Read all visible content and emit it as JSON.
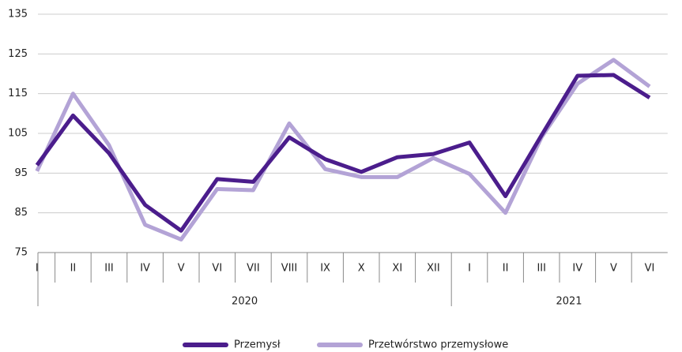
{
  "chart_data": {
    "type": "line",
    "groups": [
      {
        "name": "2020",
        "categories": [
          "I",
          "II",
          "III",
          "IV",
          "V",
          "VI",
          "VII",
          "VIII",
          "IX",
          "X",
          "XI",
          "XII"
        ]
      },
      {
        "name": "2021",
        "categories": [
          "I",
          "II",
          "III",
          "IV",
          "V",
          "VI"
        ]
      }
    ],
    "series": [
      {
        "name": "Przemysł",
        "color": "#4b1d8c",
        "values": [
          97,
          109.5,
          100,
          87,
          80.5,
          93.5,
          92.8,
          104,
          98.5,
          95.3,
          99,
          99.8,
          102.7,
          89.2,
          104.5,
          119.5,
          119.7,
          114
        ]
      },
      {
        "name": "Przetwórstwo przemysłowe",
        "color": "#b3a3d6",
        "values": [
          95.5,
          115,
          102,
          82,
          78.3,
          91,
          90.7,
          107.5,
          96,
          94,
          94,
          98.8,
          94.8,
          85,
          104,
          117.5,
          123.5,
          116.8
        ]
      }
    ],
    "ylim": [
      75,
      135
    ],
    "yticks": [
      75,
      85,
      95,
      105,
      115,
      125,
      135
    ],
    "grid": true,
    "legend": "bottom"
  }
}
